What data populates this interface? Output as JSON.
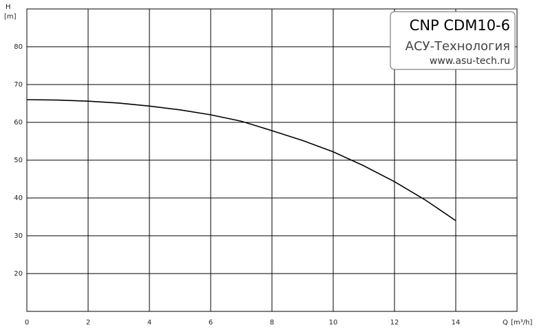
{
  "chart_data": {
    "type": "line",
    "y_label": "H",
    "y_unit": "[m]",
    "x_label": "Q",
    "x_unit": "[m³/h]",
    "x": [
      0,
      1,
      2,
      3,
      4,
      5,
      6,
      7,
      8,
      9,
      10,
      11,
      12,
      13,
      14
    ],
    "series": [
      {
        "color": "#000000",
        "values": [
          66,
          65.9,
          65.6,
          65.1,
          64.3,
          63.3,
          62,
          60.3,
          57.8,
          55.2,
          52.2,
          48.5,
          44.3,
          39.5,
          34
        ]
      }
    ],
    "xlim": [
      0,
      16
    ],
    "xticks": [
      0,
      2,
      4,
      6,
      8,
      10,
      12,
      14
    ],
    "ylim": [
      10,
      90
    ],
    "yticks": [
      20,
      30,
      40,
      50,
      60,
      70,
      80
    ],
    "grid": true,
    "annotations": [
      "CNP CDM10-6",
      "АСУ-Технология",
      "www.asu-tech.ru"
    ]
  }
}
